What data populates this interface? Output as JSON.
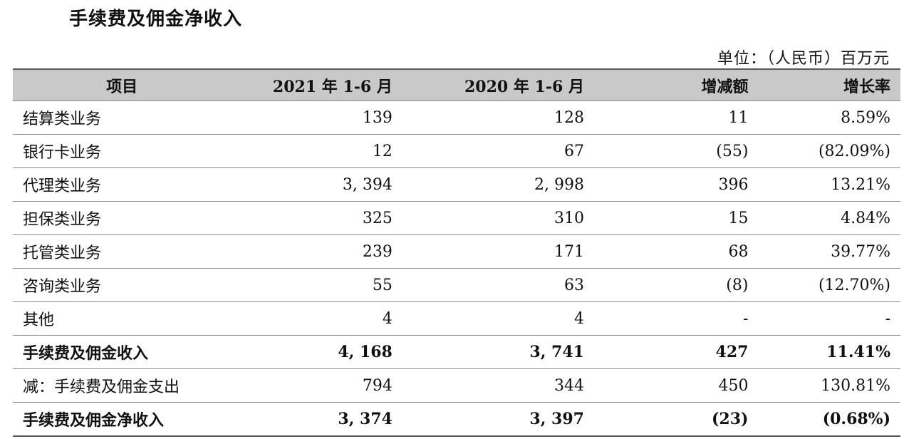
{
  "title": "手续费及佣金净收入",
  "unit": "单位：（人民币）百万元",
  "headers": [
    "项目",
    "2021 年 1-6 月",
    "2020 年 1-6 月",
    "增减额",
    "增长率"
  ],
  "rows": [
    {
      "item": "结算类业务",
      "y2021": "139",
      "y2020": "128",
      "change": "11",
      "growth": "8.59%",
      "bold": false
    },
    {
      "item": "银行卡业务",
      "y2021": "12",
      "y2020": "67",
      "change": "(55)",
      "growth": "(82.09%)",
      "bold": false
    },
    {
      "item": "代理类业务",
      "y2021": "3, 394",
      "y2020": "2, 998",
      "change": "396",
      "growth": "13.21%",
      "bold": false
    },
    {
      "item": "担保类业务",
      "y2021": "325",
      "y2020": "310",
      "change": "15",
      "growth": "4.84%",
      "bold": false
    },
    {
      "item": "托管类业务",
      "y2021": "239",
      "y2020": "171",
      "change": "68",
      "growth": "39.77%",
      "bold": false
    },
    {
      "item": "咨询类业务",
      "y2021": "55",
      "y2020": "63",
      "change": "(8)",
      "growth": "(12.70%)",
      "bold": false
    },
    {
      "item": "其他",
      "y2021": "4",
      "y2020": "4",
      "change": "-",
      "growth": "-",
      "bold": false
    },
    {
      "item": "手续费及佣金收入",
      "y2021": "4, 168",
      "y2020": "3, 741",
      "change": "427",
      "growth": "11.41%",
      "bold": true
    },
    {
      "item": "减：手续费及佣金支出",
      "y2021": "794",
      "y2020": "344",
      "change": "450",
      "growth": "130.81%",
      "bold": false
    },
    {
      "item": "手续费及佣金净收入",
      "y2021": "3, 374",
      "y2020": "3, 397",
      "change": "(23)",
      "growth": "(0.68%)",
      "bold": true
    }
  ]
}
